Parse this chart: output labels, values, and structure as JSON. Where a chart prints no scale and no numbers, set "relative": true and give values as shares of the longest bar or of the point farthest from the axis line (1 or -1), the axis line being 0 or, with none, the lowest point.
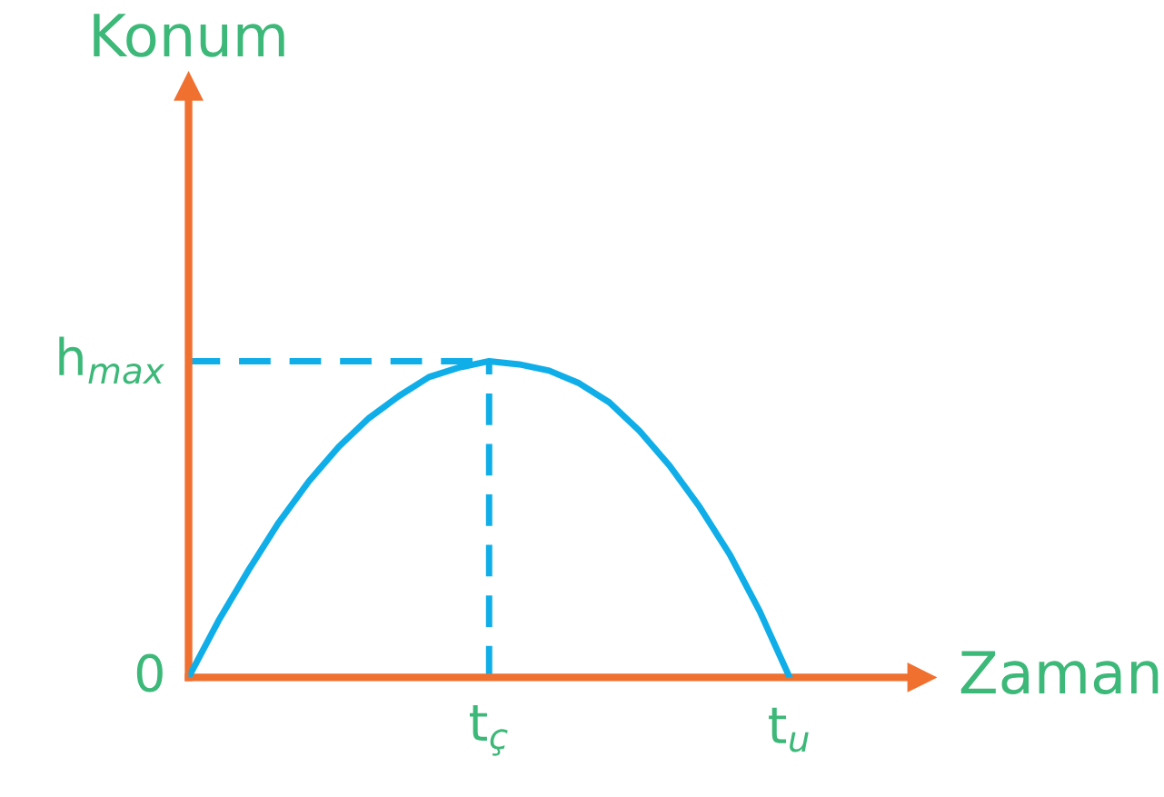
{
  "chart_data": {
    "type": "line",
    "relative": true,
    "xlabel": "Zaman",
    "categories": [
      null,
      null,
      null,
      null,
      null,
      null,
      null,
      null,
      null,
      null,
      "t$_{ç}$",
      null,
      null,
      null,
      null,
      null,
      null,
      null,
      null,
      null,
      "t$_{u}$"
    ],
    "series": [
      {
        "color": "#10aee8",
        "values": [
          0,
          0.18,
          0.34,
          0.49,
          0.62,
          0.73,
          0.82,
          0.89,
          0.95,
          0.98,
          1,
          0.99,
          0.97,
          0.93,
          0.87,
          0.78,
          0.67,
          0.54,
          0.39,
          0.21,
          0
        ]
      }
    ],
    "annotations": [
      "Konum",
      "0",
      "h$_{max}$"
    ],
    "ref_lines": [
      {
        "axis": "y",
        "value": 1,
        "color": "#10aee8",
        "line_style": "dashed"
      },
      {
        "axis": "x",
        "value": "t$_{ç}$",
        "color": "#10aee8",
        "line_style": "dashed"
      }
    ],
    "grid": false,
    "legend": false,
    "marker": "none",
    "line_style": "solid"
  }
}
